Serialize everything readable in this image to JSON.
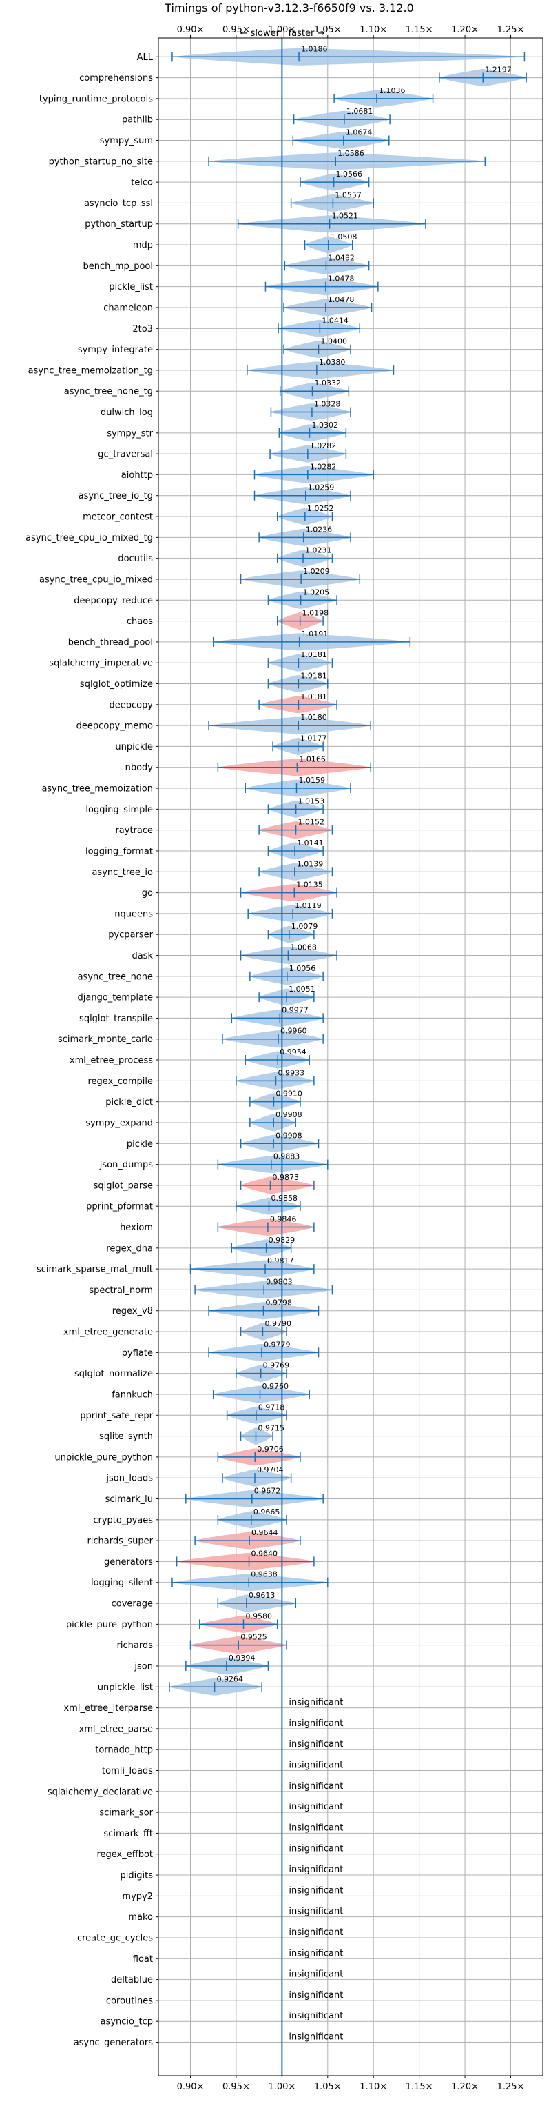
{
  "chart_data": {
    "type": "violin",
    "title": "Timings of python-v3.12.3-f6650f9 vs. 3.12.0",
    "annotation": "← slower | faster →",
    "insignificant_label": "insignificant",
    "xlim": [
      0.865,
      1.285
    ],
    "xticks": [
      {
        "value": 0.9,
        "label": "0.90×"
      },
      {
        "value": 0.95,
        "label": "0.95×"
      },
      {
        "value": 1.0,
        "label": "1.00×"
      },
      {
        "value": 1.05,
        "label": "1.05×"
      },
      {
        "value": 1.1,
        "label": "1.10×"
      },
      {
        "value": 1.15,
        "label": "1.15×"
      },
      {
        "value": 1.2,
        "label": "1.20×"
      },
      {
        "value": 1.25,
        "label": "1.25×"
      }
    ],
    "reference_line": 1.0,
    "grid": true,
    "colors": {
      "faster": "#aac8e6",
      "slower": "#f4a7a7",
      "whisker": "#1f6fb4",
      "grid": "#b0b0b0"
    },
    "benchmarks": [
      {
        "name": "ALL",
        "mean": 1.0186,
        "min": 0.88,
        "max": 1.265,
        "status": "faster",
        "significant": true
      },
      {
        "name": "comprehensions",
        "mean": 1.2197,
        "min": 1.172,
        "max": 1.267,
        "status": "faster",
        "significant": true
      },
      {
        "name": "typing_runtime_protocols",
        "mean": 1.1036,
        "min": 1.057,
        "max": 1.165,
        "status": "faster",
        "significant": true
      },
      {
        "name": "pathlib",
        "mean": 1.0681,
        "min": 1.013,
        "max": 1.118,
        "status": "faster",
        "significant": true
      },
      {
        "name": "sympy_sum",
        "mean": 1.0674,
        "min": 1.012,
        "max": 1.117,
        "status": "faster",
        "significant": true
      },
      {
        "name": "python_startup_no_site",
        "mean": 1.0586,
        "min": 0.92,
        "max": 1.222,
        "status": "faster",
        "significant": true
      },
      {
        "name": "telco",
        "mean": 1.0566,
        "min": 1.02,
        "max": 1.095,
        "status": "faster",
        "significant": true
      },
      {
        "name": "asyncio_tcp_ssl",
        "mean": 1.0557,
        "min": 1.01,
        "max": 1.1,
        "status": "faster",
        "significant": true
      },
      {
        "name": "python_startup",
        "mean": 1.0521,
        "min": 0.952,
        "max": 1.157,
        "status": "faster",
        "significant": true
      },
      {
        "name": "mdp",
        "mean": 1.0508,
        "min": 1.025,
        "max": 1.077,
        "status": "faster",
        "significant": true
      },
      {
        "name": "bench_mp_pool",
        "mean": 1.0482,
        "min": 1.003,
        "max": 1.095,
        "status": "faster",
        "significant": true
      },
      {
        "name": "pickle_list",
        "mean": 1.0478,
        "min": 0.982,
        "max": 1.105,
        "status": "faster",
        "significant": true
      },
      {
        "name": "chameleon",
        "mean": 1.0478,
        "min": 1.002,
        "max": 1.098,
        "status": "faster",
        "significant": true
      },
      {
        "name": "2to3",
        "mean": 1.0414,
        "min": 0.996,
        "max": 1.085,
        "status": "faster",
        "significant": true
      },
      {
        "name": "sympy_integrate",
        "mean": 1.04,
        "min": 1.002,
        "max": 1.075,
        "status": "faster",
        "significant": true
      },
      {
        "name": "async_tree_memoization_tg",
        "mean": 1.038,
        "min": 0.962,
        "max": 1.122,
        "status": "faster",
        "significant": true
      },
      {
        "name": "async_tree_none_tg",
        "mean": 1.0332,
        "min": 0.998,
        "max": 1.073,
        "status": "faster",
        "significant": true
      },
      {
        "name": "dulwich_log",
        "mean": 1.0328,
        "min": 0.988,
        "max": 1.075,
        "status": "faster",
        "significant": true
      },
      {
        "name": "sympy_str",
        "mean": 1.0302,
        "min": 0.997,
        "max": 1.07,
        "status": "faster",
        "significant": true
      },
      {
        "name": "gc_traversal",
        "mean": 1.0282,
        "min": 0.987,
        "max": 1.07,
        "status": "faster",
        "significant": true
      },
      {
        "name": "aiohttp",
        "mean": 1.0282,
        "min": 0.97,
        "max": 1.1,
        "status": "faster",
        "significant": true
      },
      {
        "name": "async_tree_io_tg",
        "mean": 1.0259,
        "min": 0.97,
        "max": 1.075,
        "status": "faster",
        "significant": true
      },
      {
        "name": "meteor_contest",
        "mean": 1.0252,
        "min": 0.995,
        "max": 1.055,
        "status": "faster",
        "significant": true
      },
      {
        "name": "async_tree_cpu_io_mixed_tg",
        "mean": 1.0236,
        "min": 0.975,
        "max": 1.075,
        "status": "faster",
        "significant": true
      },
      {
        "name": "docutils",
        "mean": 1.0231,
        "min": 0.995,
        "max": 1.055,
        "status": "faster",
        "significant": true
      },
      {
        "name": "async_tree_cpu_io_mixed",
        "mean": 1.0209,
        "min": 0.955,
        "max": 1.085,
        "status": "faster",
        "significant": true
      },
      {
        "name": "deepcopy_reduce",
        "mean": 1.0205,
        "min": 0.985,
        "max": 1.06,
        "status": "faster",
        "significant": true
      },
      {
        "name": "chaos",
        "mean": 1.0198,
        "min": 0.995,
        "max": 1.045,
        "status": "slower",
        "significant": true
      },
      {
        "name": "bench_thread_pool",
        "mean": 1.0191,
        "min": 0.925,
        "max": 1.14,
        "status": "faster",
        "significant": true
      },
      {
        "name": "sqlalchemy_imperative",
        "mean": 1.0181,
        "min": 0.985,
        "max": 1.055,
        "status": "faster",
        "significant": true
      },
      {
        "name": "sqlglot_optimize",
        "mean": 1.0181,
        "min": 0.985,
        "max": 1.05,
        "status": "faster",
        "significant": true
      },
      {
        "name": "deepcopy",
        "mean": 1.0181,
        "min": 0.975,
        "max": 1.06,
        "status": "slower",
        "significant": true
      },
      {
        "name": "deepcopy_memo",
        "mean": 1.018,
        "min": 0.92,
        "max": 1.097,
        "status": "faster",
        "significant": true
      },
      {
        "name": "unpickle",
        "mean": 1.0177,
        "min": 0.99,
        "max": 1.045,
        "status": "faster",
        "significant": true
      },
      {
        "name": "nbody",
        "mean": 1.0166,
        "min": 0.93,
        "max": 1.097,
        "status": "slower",
        "significant": true
      },
      {
        "name": "async_tree_memoization",
        "mean": 1.0159,
        "min": 0.96,
        "max": 1.075,
        "status": "faster",
        "significant": true
      },
      {
        "name": "logging_simple",
        "mean": 1.0153,
        "min": 0.985,
        "max": 1.045,
        "status": "faster",
        "significant": true
      },
      {
        "name": "raytrace",
        "mean": 1.0152,
        "min": 0.975,
        "max": 1.055,
        "status": "slower",
        "significant": true
      },
      {
        "name": "logging_format",
        "mean": 1.0141,
        "min": 0.985,
        "max": 1.045,
        "status": "faster",
        "significant": true
      },
      {
        "name": "async_tree_io",
        "mean": 1.0139,
        "min": 0.975,
        "max": 1.055,
        "status": "faster",
        "significant": true
      },
      {
        "name": "go",
        "mean": 1.0135,
        "min": 0.955,
        "max": 1.06,
        "status": "slower",
        "significant": true
      },
      {
        "name": "nqueens",
        "mean": 1.0119,
        "min": 0.963,
        "max": 1.055,
        "status": "faster",
        "significant": true
      },
      {
        "name": "pycparser",
        "mean": 1.0079,
        "min": 0.985,
        "max": 1.035,
        "status": "faster",
        "significant": true
      },
      {
        "name": "dask",
        "mean": 1.0068,
        "min": 0.955,
        "max": 1.06,
        "status": "faster",
        "significant": true
      },
      {
        "name": "async_tree_none",
        "mean": 1.0056,
        "min": 0.965,
        "max": 1.045,
        "status": "faster",
        "significant": true
      },
      {
        "name": "django_template",
        "mean": 1.0051,
        "min": 0.975,
        "max": 1.035,
        "status": "faster",
        "significant": true
      },
      {
        "name": "sqlglot_transpile",
        "mean": 0.9977,
        "min": 0.945,
        "max": 1.045,
        "status": "faster",
        "significant": true
      },
      {
        "name": "scimark_monte_carlo",
        "mean": 0.996,
        "min": 0.935,
        "max": 1.045,
        "status": "faster",
        "significant": true
      },
      {
        "name": "xml_etree_process",
        "mean": 0.9954,
        "min": 0.96,
        "max": 1.03,
        "status": "faster",
        "significant": true
      },
      {
        "name": "regex_compile",
        "mean": 0.9933,
        "min": 0.95,
        "max": 1.035,
        "status": "faster",
        "significant": true
      },
      {
        "name": "pickle_dict",
        "mean": 0.991,
        "min": 0.965,
        "max": 1.02,
        "status": "faster",
        "significant": true
      },
      {
        "name": "sympy_expand",
        "mean": 0.9908,
        "min": 0.965,
        "max": 1.015,
        "status": "faster",
        "significant": true
      },
      {
        "name": "pickle",
        "mean": 0.9908,
        "min": 0.955,
        "max": 1.04,
        "status": "faster",
        "significant": true
      },
      {
        "name": "json_dumps",
        "mean": 0.9883,
        "min": 0.93,
        "max": 1.05,
        "status": "faster",
        "significant": true
      },
      {
        "name": "sqlglot_parse",
        "mean": 0.9873,
        "min": 0.955,
        "max": 1.035,
        "status": "slower",
        "significant": true
      },
      {
        "name": "pprint_pformat",
        "mean": 0.9858,
        "min": 0.95,
        "max": 1.02,
        "status": "faster",
        "significant": true
      },
      {
        "name": "hexiom",
        "mean": 0.9846,
        "min": 0.93,
        "max": 1.035,
        "status": "slower",
        "significant": true
      },
      {
        "name": "regex_dna",
        "mean": 0.9829,
        "min": 0.945,
        "max": 1.01,
        "status": "faster",
        "significant": true
      },
      {
        "name": "scimark_sparse_mat_mult",
        "mean": 0.9817,
        "min": 0.9,
        "max": 1.035,
        "status": "faster",
        "significant": true
      },
      {
        "name": "spectral_norm",
        "mean": 0.9803,
        "min": 0.905,
        "max": 1.055,
        "status": "faster",
        "significant": true
      },
      {
        "name": "regex_v8",
        "mean": 0.9798,
        "min": 0.92,
        "max": 1.04,
        "status": "faster",
        "significant": true
      },
      {
        "name": "xml_etree_generate",
        "mean": 0.979,
        "min": 0.955,
        "max": 1.005,
        "status": "faster",
        "significant": true
      },
      {
        "name": "pyflate",
        "mean": 0.9779,
        "min": 0.92,
        "max": 1.04,
        "status": "faster",
        "significant": true
      },
      {
        "name": "sqlglot_normalize",
        "mean": 0.9769,
        "min": 0.95,
        "max": 1.005,
        "status": "faster",
        "significant": true
      },
      {
        "name": "fannkuch",
        "mean": 0.976,
        "min": 0.925,
        "max": 1.03,
        "status": "faster",
        "significant": true
      },
      {
        "name": "pprint_safe_repr",
        "mean": 0.9718,
        "min": 0.94,
        "max": 1.005,
        "status": "faster",
        "significant": true
      },
      {
        "name": "sqlite_synth",
        "mean": 0.9715,
        "min": 0.955,
        "max": 0.99,
        "status": "faster",
        "significant": true
      },
      {
        "name": "unpickle_pure_python",
        "mean": 0.9706,
        "min": 0.93,
        "max": 1.02,
        "status": "slower",
        "significant": true
      },
      {
        "name": "json_loads",
        "mean": 0.9704,
        "min": 0.935,
        "max": 1.01,
        "status": "faster",
        "significant": true
      },
      {
        "name": "scimark_lu",
        "mean": 0.9672,
        "min": 0.895,
        "max": 1.045,
        "status": "faster",
        "significant": true
      },
      {
        "name": "crypto_pyaes",
        "mean": 0.9665,
        "min": 0.93,
        "max": 1.005,
        "status": "faster",
        "significant": true
      },
      {
        "name": "richards_super",
        "mean": 0.9644,
        "min": 0.905,
        "max": 1.02,
        "status": "slower",
        "significant": true
      },
      {
        "name": "generators",
        "mean": 0.964,
        "min": 0.885,
        "max": 1.035,
        "status": "slower",
        "significant": true
      },
      {
        "name": "logging_silent",
        "mean": 0.9638,
        "min": 0.88,
        "max": 1.05,
        "status": "faster",
        "significant": true
      },
      {
        "name": "coverage",
        "mean": 0.9613,
        "min": 0.93,
        "max": 1.015,
        "status": "faster",
        "significant": true
      },
      {
        "name": "pickle_pure_python",
        "mean": 0.958,
        "min": 0.91,
        "max": 0.995,
        "status": "slower",
        "significant": true
      },
      {
        "name": "richards",
        "mean": 0.9525,
        "min": 0.9,
        "max": 1.005,
        "status": "slower",
        "significant": true
      },
      {
        "name": "json",
        "mean": 0.9394,
        "min": 0.895,
        "max": 0.985,
        "status": "faster",
        "significant": true
      },
      {
        "name": "unpickle_list",
        "mean": 0.9264,
        "min": 0.877,
        "max": 0.978,
        "status": "faster",
        "significant": true
      },
      {
        "name": "xml_etree_iterparse",
        "significant": false
      },
      {
        "name": "xml_etree_parse",
        "significant": false
      },
      {
        "name": "tornado_http",
        "significant": false
      },
      {
        "name": "tomli_loads",
        "significant": false
      },
      {
        "name": "sqlalchemy_declarative",
        "significant": false
      },
      {
        "name": "scimark_sor",
        "significant": false
      },
      {
        "name": "scimark_fft",
        "significant": false
      },
      {
        "name": "regex_effbot",
        "significant": false
      },
      {
        "name": "pidigits",
        "significant": false
      },
      {
        "name": "mypy2",
        "significant": false
      },
      {
        "name": "mako",
        "significant": false
      },
      {
        "name": "create_gc_cycles",
        "significant": false
      },
      {
        "name": "float",
        "significant": false
      },
      {
        "name": "deltablue",
        "significant": false
      },
      {
        "name": "coroutines",
        "significant": false
      },
      {
        "name": "asyncio_tcp",
        "significant": false
      },
      {
        "name": "async_generators",
        "significant": false
      }
    ]
  }
}
